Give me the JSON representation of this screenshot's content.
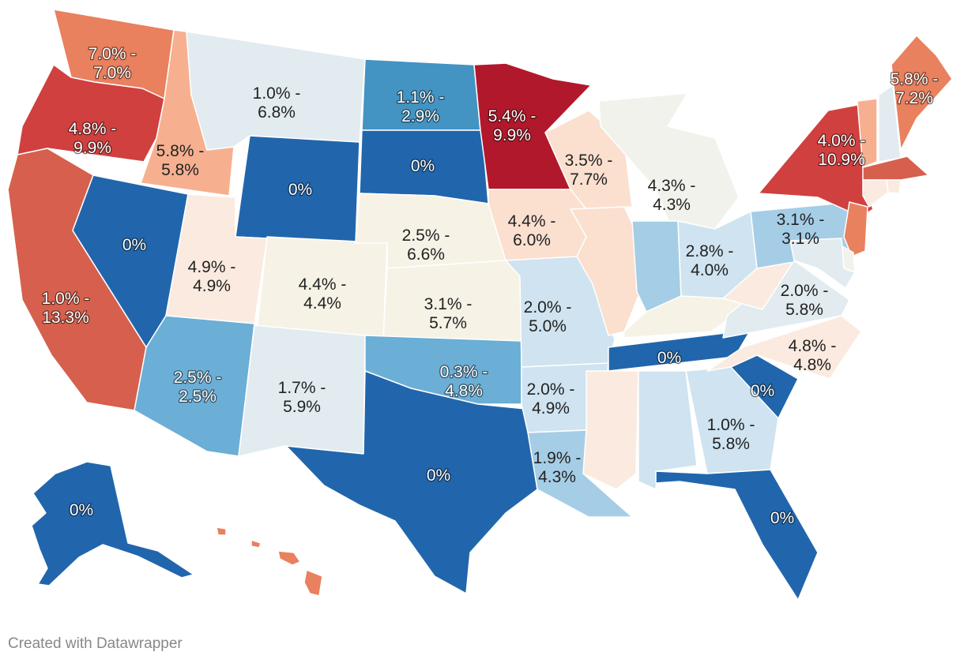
{
  "map": {
    "region": "United States",
    "bins": [
      {
        "key": "b0",
        "color": "#2166ac"
      },
      {
        "key": "b1",
        "color": "#4393c3"
      },
      {
        "key": "b2",
        "color": "#6baed6"
      },
      {
        "key": "b3",
        "color": "#a6cde6"
      },
      {
        "key": "b4",
        "color": "#cfe3f0"
      },
      {
        "key": "b5",
        "color": "#e1ebf0"
      },
      {
        "key": "b6",
        "color": "#f2f2ec"
      },
      {
        "key": "b7",
        "color": "#f6f2e6"
      },
      {
        "key": "b8",
        "color": "#fbeadf"
      },
      {
        "key": "b9",
        "color": "#fbdfcf"
      },
      {
        "key": "b10",
        "color": "#f6b090"
      },
      {
        "key": "b11",
        "color": "#e9805e"
      },
      {
        "key": "b12",
        "color": "#d6604d"
      },
      {
        "key": "b13",
        "color": "#d0403f"
      },
      {
        "key": "b14",
        "color": "#b2182b"
      }
    ],
    "states": [
      {
        "id": "WA",
        "label": [
          "7.0% -",
          "7.0%"
        ],
        "bin": "b11"
      },
      {
        "id": "OR",
        "label": [
          "4.8% -",
          "9.9%"
        ],
        "bin": "b13"
      },
      {
        "id": "CA",
        "label": [
          "1.0% -",
          "13.3%"
        ],
        "bin": "b12"
      },
      {
        "id": "ID",
        "label": [
          "5.8% -",
          "5.8%"
        ],
        "bin": "b10"
      },
      {
        "id": "NV",
        "label": [
          "0%"
        ],
        "bin": "b0"
      },
      {
        "id": "MT",
        "label": [
          "1.0% -",
          "6.8%"
        ],
        "bin": "b5"
      },
      {
        "id": "WY",
        "label": [
          "0%"
        ],
        "bin": "b0"
      },
      {
        "id": "UT",
        "label": [
          "4.9% -",
          "4.9%"
        ],
        "bin": "b8"
      },
      {
        "id": "AZ",
        "label": [
          "2.5% -",
          "2.5%"
        ],
        "bin": "b2"
      },
      {
        "id": "CO",
        "label": [
          "4.4% -",
          "4.4%"
        ],
        "bin": "b7"
      },
      {
        "id": "NM",
        "label": [
          "1.7% -",
          "5.9%"
        ],
        "bin": "b5"
      },
      {
        "id": "ND",
        "label": [
          "1.1% -",
          "2.9%"
        ],
        "bin": "b1"
      },
      {
        "id": "SD",
        "label": [
          "0%"
        ],
        "bin": "b0"
      },
      {
        "id": "NE",
        "label": [
          "2.5% -",
          "6.6%"
        ],
        "bin": "b7"
      },
      {
        "id": "KS",
        "label": [
          "3.1% -",
          "5.7%"
        ],
        "bin": "b7"
      },
      {
        "id": "OK",
        "label": [
          "0.3% -",
          "4.8%"
        ],
        "bin": "b2"
      },
      {
        "id": "TX",
        "label": [
          "0%"
        ],
        "bin": "b0"
      },
      {
        "id": "MN",
        "label": [
          "5.4% -",
          "9.9%"
        ],
        "bin": "b14"
      },
      {
        "id": "IA",
        "label": [
          "4.4% -",
          "6.0%"
        ],
        "bin": "b9"
      },
      {
        "id": "MO",
        "label": [
          "2.0% -",
          "5.0%"
        ],
        "bin": "b4"
      },
      {
        "id": "AR",
        "label": [
          "2.0% -",
          "4.9%"
        ],
        "bin": "b4"
      },
      {
        "id": "LA",
        "label": [
          "1.9% -",
          "4.3%"
        ],
        "bin": "b3"
      },
      {
        "id": "WI",
        "label": [
          "3.5% -",
          "7.7%"
        ],
        "bin": "b9"
      },
      {
        "id": "IL",
        "label": [],
        "bin": "b9"
      },
      {
        "id": "MI",
        "label": [
          "4.3% -",
          "4.3%"
        ],
        "bin": "b6"
      },
      {
        "id": "IN",
        "label": [],
        "bin": "b3"
      },
      {
        "id": "OH",
        "label": [
          "2.8% -",
          "4.0%"
        ],
        "bin": "b4"
      },
      {
        "id": "KY",
        "label": [],
        "bin": "b7"
      },
      {
        "id": "TN",
        "label": [
          "0%"
        ],
        "bin": "b0"
      },
      {
        "id": "MS",
        "label": [],
        "bin": "b8"
      },
      {
        "id": "AL",
        "label": [],
        "bin": "b4"
      },
      {
        "id": "GA",
        "label": [
          "1.0% -",
          "5.8%"
        ],
        "bin": "b4"
      },
      {
        "id": "FL",
        "label": [
          "0%"
        ],
        "bin": "b0"
      },
      {
        "id": "SC",
        "label": [
          "0%"
        ],
        "bin": "b0"
      },
      {
        "id": "NC",
        "label": [
          "4.8% -",
          "4.8%"
        ],
        "bin": "b8"
      },
      {
        "id": "VA",
        "label": [
          "2.0% -",
          "5.8%"
        ],
        "bin": "b5"
      },
      {
        "id": "WV",
        "label": [],
        "bin": "b8"
      },
      {
        "id": "PA",
        "label": [
          "3.1% -",
          "3.1%"
        ],
        "bin": "b3"
      },
      {
        "id": "NY",
        "label": [
          "4.0% -",
          "10.9%"
        ],
        "bin": "b13"
      },
      {
        "id": "VT",
        "label": [],
        "bin": "b10"
      },
      {
        "id": "NH",
        "label": [],
        "bin": "b5"
      },
      {
        "id": "ME",
        "label": [
          "5.8% -",
          "7.2%"
        ],
        "bin": "b11"
      },
      {
        "id": "MA",
        "label": [],
        "bin": "b12"
      },
      {
        "id": "RI",
        "label": [],
        "bin": "b8"
      },
      {
        "id": "CT",
        "label": [],
        "bin": "b8"
      },
      {
        "id": "NJ",
        "label": [],
        "bin": "b11"
      },
      {
        "id": "DE",
        "label": [],
        "bin": "b6"
      },
      {
        "id": "MD",
        "label": [],
        "bin": "b5"
      },
      {
        "id": "AK",
        "label": [
          "0%"
        ],
        "bin": "b0"
      },
      {
        "id": "HI",
        "label": [],
        "bin": "b11"
      }
    ]
  },
  "footer": {
    "credit": "Created with Datawrapper"
  }
}
